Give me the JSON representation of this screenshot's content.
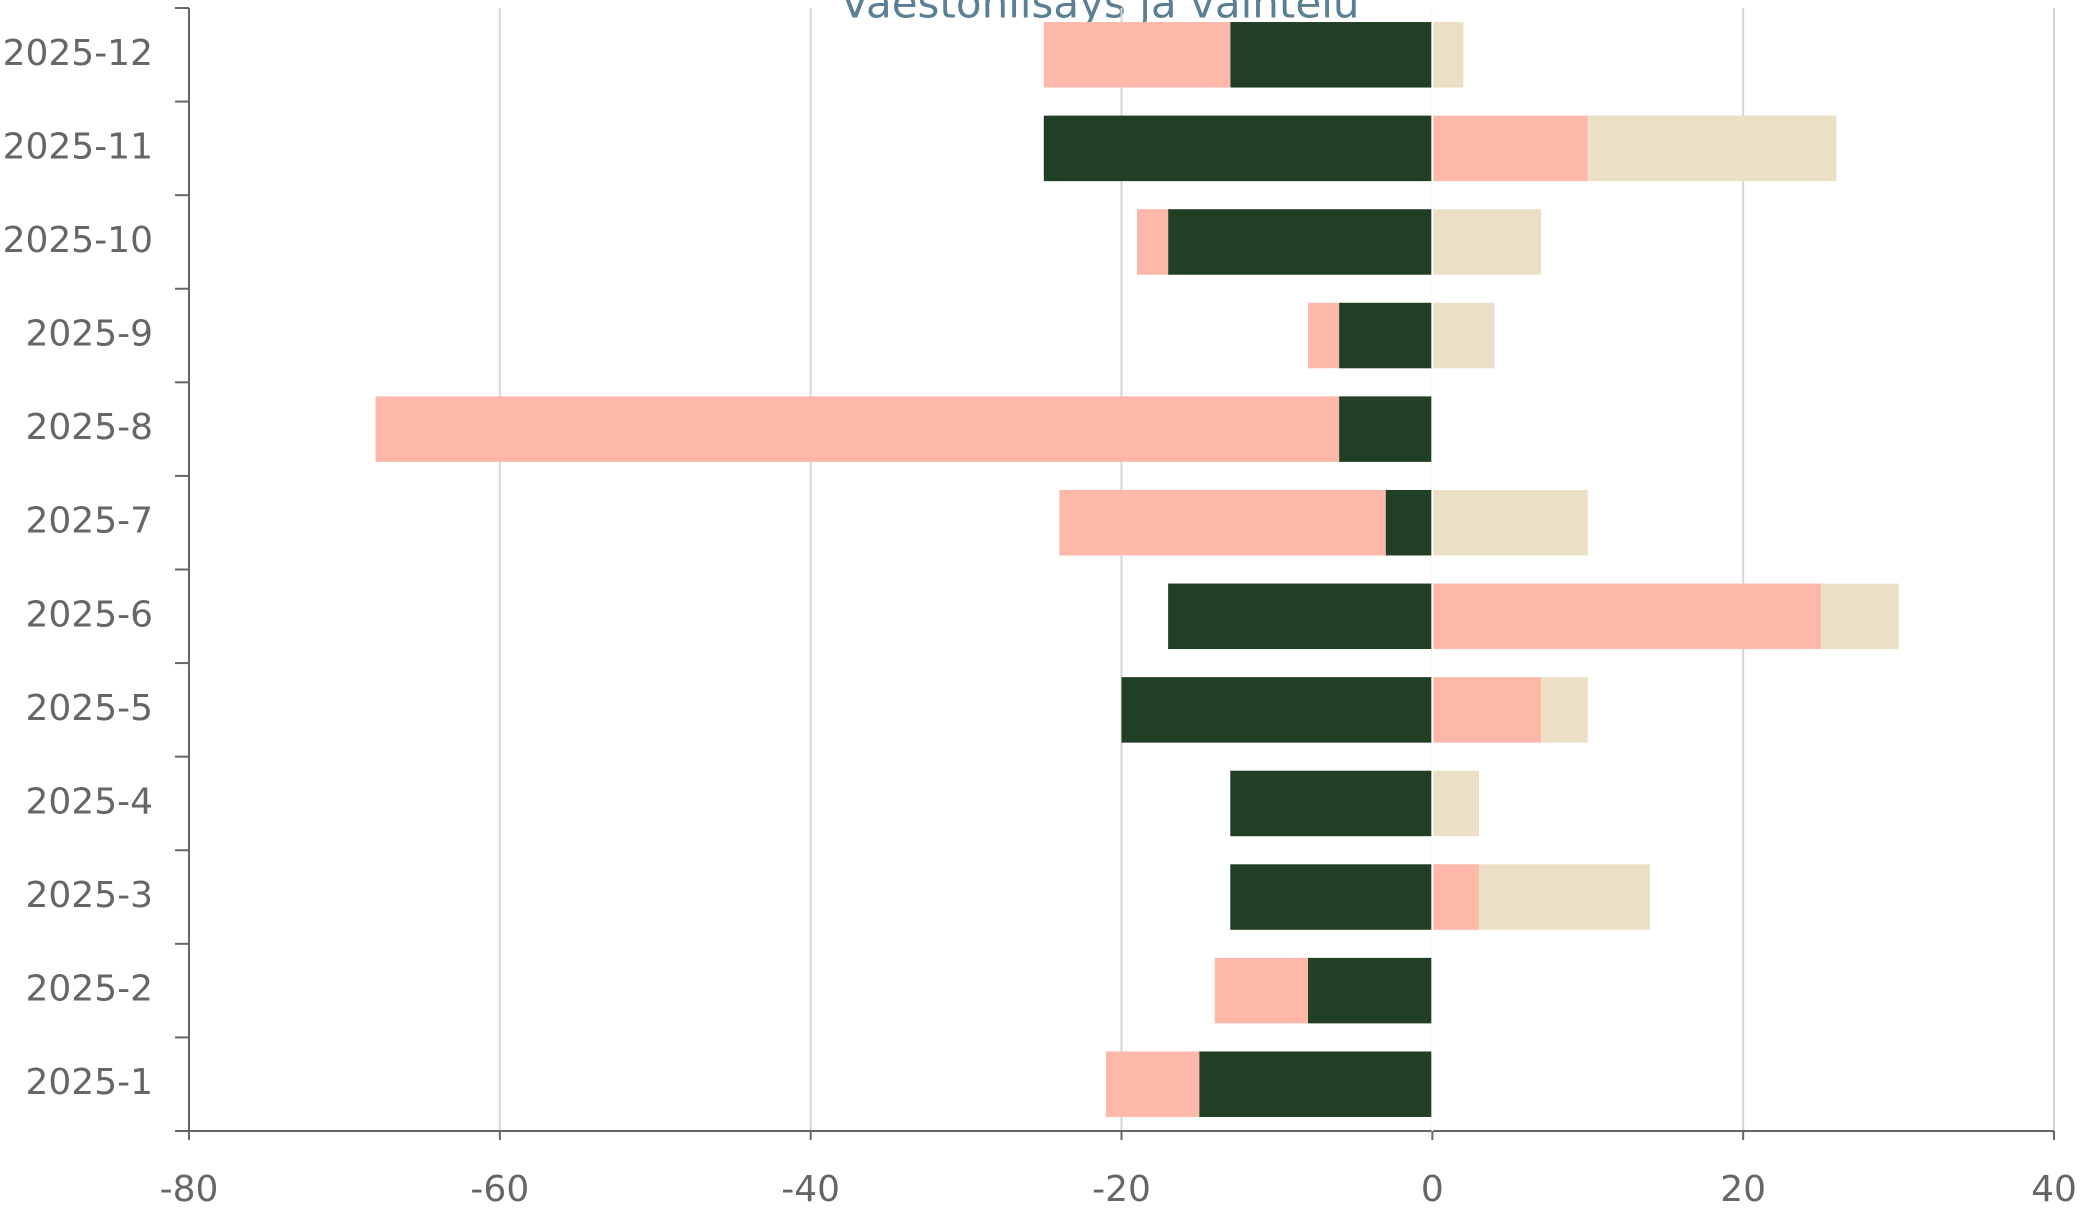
{
  "chart_data": {
    "type": "bar",
    "orientation": "horizontal",
    "stacked": true,
    "title": "Väestönlisäys ja vaihtelu",
    "categories": [
      "2025-1",
      "2025-2",
      "2025-3",
      "2025-4",
      "2025-5",
      "2025-6",
      "2025-7",
      "2025-8",
      "2025-9",
      "2025-10",
      "2025-11",
      "2025-12"
    ],
    "series": [
      {
        "color": "#213f25",
        "values": [
          -15,
          -8,
          -13,
          -13,
          -20,
          -17,
          -3,
          -6,
          -6,
          -17,
          -25,
          -13
        ]
      },
      {
        "color": "#fdb8aa",
        "values": [
          -6,
          -6,
          3,
          0,
          7,
          25,
          -21,
          -62,
          -2,
          -2,
          10,
          -12
        ]
      },
      {
        "color": "#ebdfc6",
        "values": [
          0,
          0,
          11,
          3,
          3,
          5,
          10,
          0,
          4,
          7,
          16,
          2
        ]
      }
    ],
    "xlim": [
      -80,
      40
    ],
    "xticks": [
      -80,
      -60,
      -40,
      -20,
      0,
      20,
      40
    ],
    "grid": true
  }
}
